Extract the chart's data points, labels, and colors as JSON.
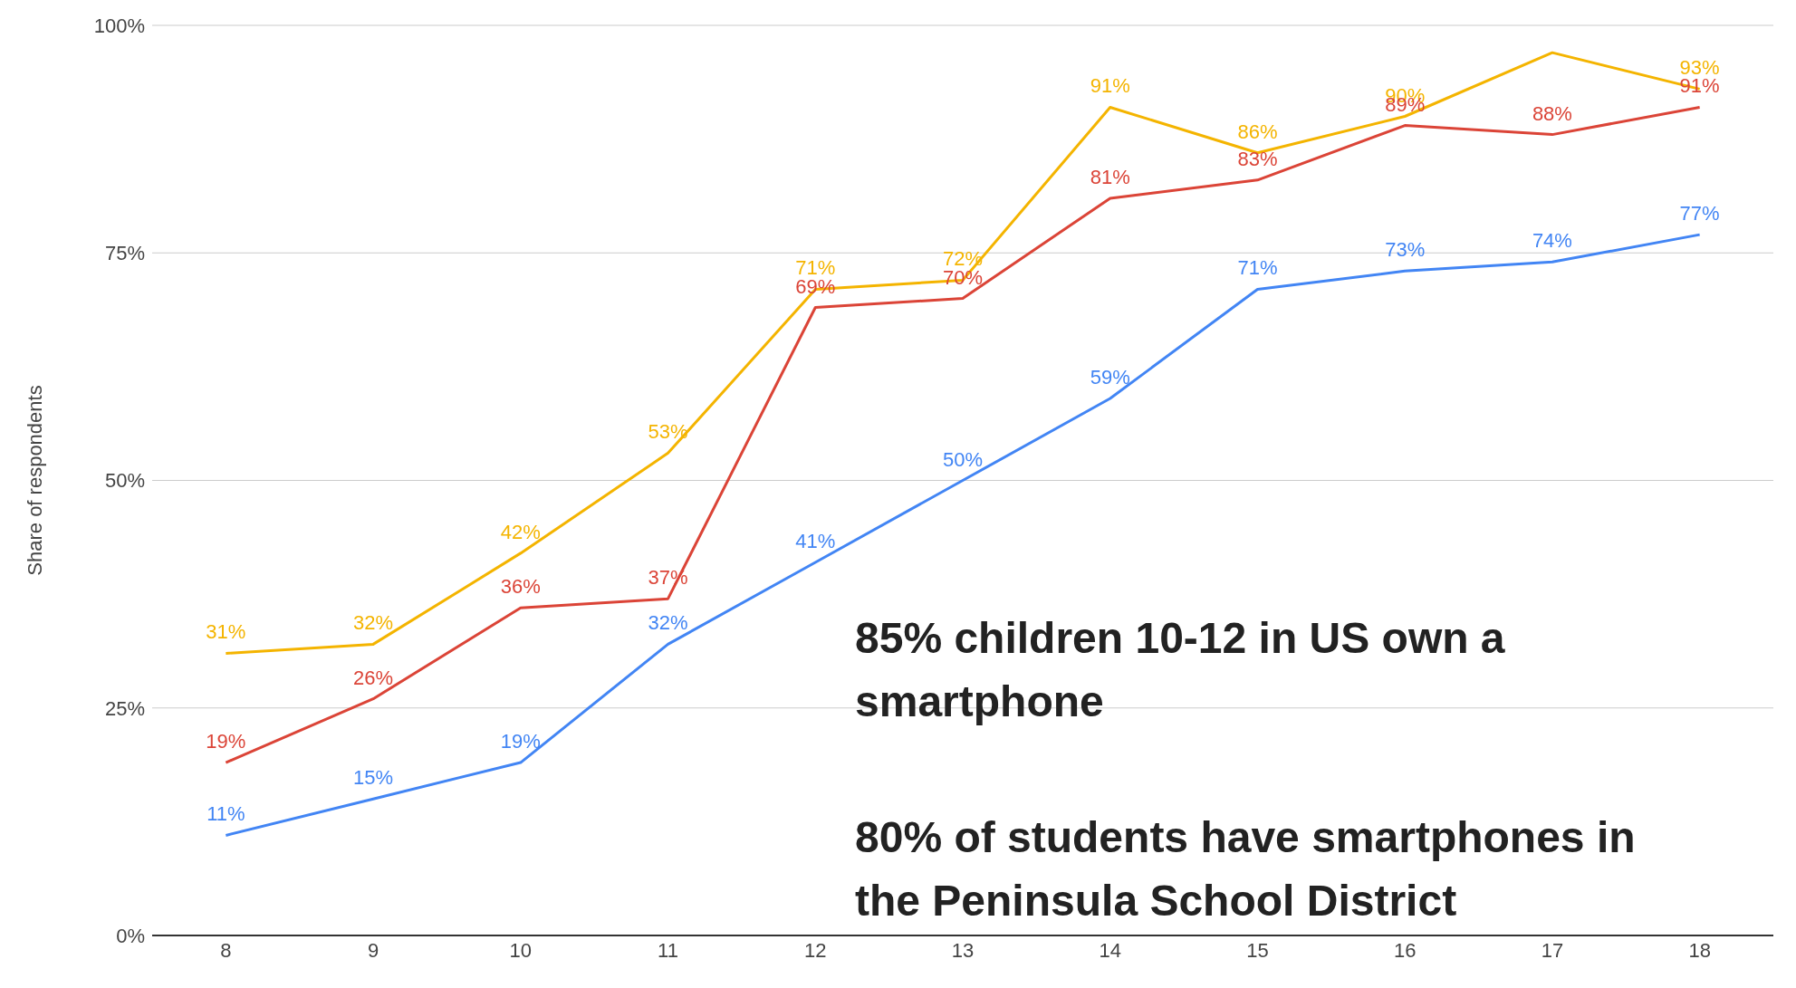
{
  "chart_data": {
    "type": "line",
    "ylabel": "Share of respondents",
    "x": [
      8,
      9,
      10,
      11,
      12,
      13,
      14,
      15,
      16,
      17,
      18
    ],
    "xlim": [
      7.5,
      18.5
    ],
    "xticks": [
      8,
      9,
      10,
      11,
      12,
      13,
      14,
      15,
      16,
      17,
      18
    ],
    "ylim": [
      0,
      100
    ],
    "yticks": [
      {
        "value": 0,
        "label": "0%"
      },
      {
        "value": 25,
        "label": "25%"
      },
      {
        "value": 50,
        "label": "50%"
      },
      {
        "value": 75,
        "label": "75%"
      },
      {
        "value": 100,
        "label": "100%"
      }
    ],
    "grid": "y",
    "marker": "none",
    "line_style": "solid",
    "series": [
      {
        "color": "#f4b400",
        "values": [
          31,
          32,
          42,
          53,
          71,
          72,
          91,
          86,
          90,
          97,
          93
        ],
        "value_labels": [
          "31%",
          "32%",
          "42%",
          "53%",
          "71%",
          "72%",
          "91%",
          "86%",
          "90%",
          null,
          "93%"
        ]
      },
      {
        "color": "#db4437",
        "values": [
          19,
          26,
          36,
          37,
          69,
          70,
          81,
          83,
          89,
          88,
          91
        ],
        "value_labels": [
          "19%",
          "26%",
          "36%",
          "37%",
          "69%",
          "70%",
          "81%",
          "83%",
          "89%",
          "88%",
          "91%"
        ]
      },
      {
        "color": "#4285f4",
        "values": [
          11,
          15,
          19,
          32,
          41,
          50,
          59,
          71,
          73,
          74,
          77
        ],
        "value_labels": [
          "11%",
          "15%",
          "19%",
          "32%",
          "41%",
          "50%",
          "59%",
          "71%",
          "73%",
          "74%",
          "77%"
        ]
      }
    ],
    "annotations": [
      "85% children 10-12 in US own a smartphone",
      "80% of students have smartphones in the Peninsula School District"
    ]
  }
}
